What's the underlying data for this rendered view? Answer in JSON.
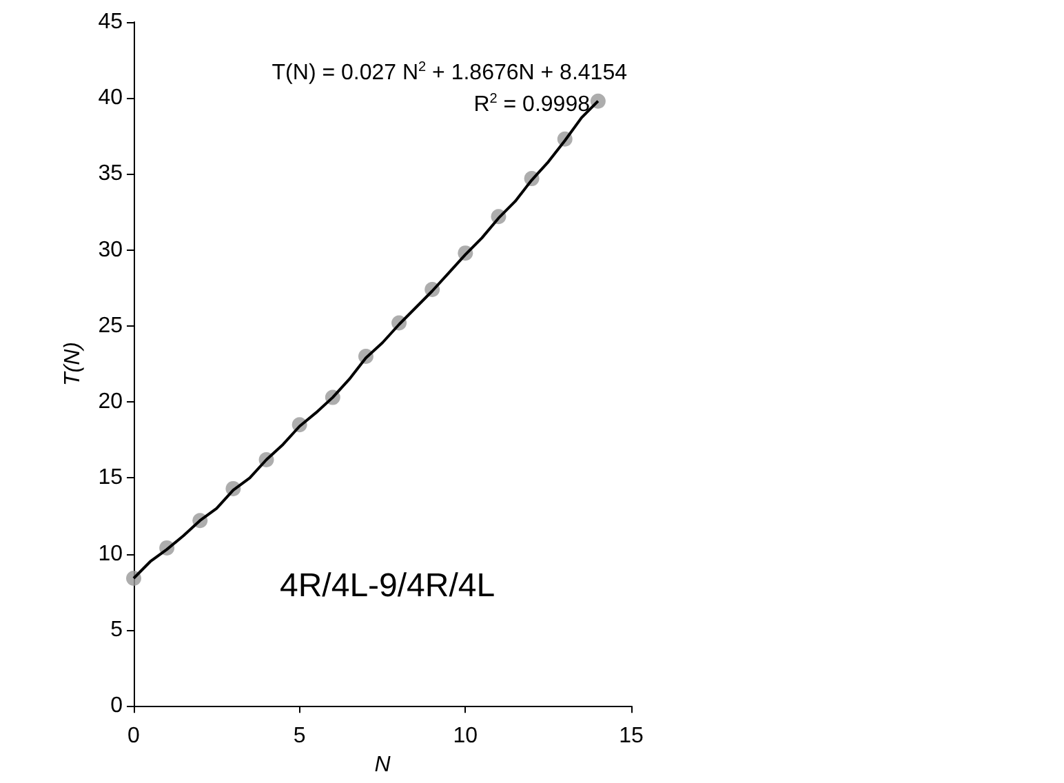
{
  "chart_data": {
    "type": "scatter",
    "xlabel": "N",
    "ylabel": "T(N)",
    "x": [
      0,
      1,
      2,
      3,
      4,
      5,
      6,
      7,
      8,
      9,
      10,
      11,
      12,
      13,
      14
    ],
    "series": [
      {
        "color": "#999999",
        "marker": "circle",
        "values": [
          8.4,
          10.4,
          12.2,
          14.3,
          16.2,
          18.5,
          20.3,
          23.0,
          25.2,
          27.4,
          29.8,
          32.2,
          34.7,
          37.3,
          39.8
        ]
      },
      {
        "type": "line",
        "color": "#000000",
        "marker": "none",
        "line_style": "solid",
        "x": [
          0,
          0.5,
          1,
          1.5,
          2,
          2.5,
          3,
          3.5,
          4,
          4.5,
          5,
          5.5,
          6,
          6.5,
          7,
          7.5,
          8,
          8.5,
          9,
          9.5,
          10,
          10.5,
          11,
          11.5,
          12,
          12.5,
          13,
          13.5,
          14
        ],
        "values": [
          8.4,
          9.5,
          10.3,
          11.2,
          12.2,
          13.0,
          14.2,
          15.0,
          16.2,
          17.2,
          18.4,
          19.3,
          20.3,
          21.5,
          22.9,
          23.9,
          25.1,
          26.2,
          27.3,
          28.5,
          29.7,
          30.8,
          32.1,
          33.2,
          34.6,
          35.8,
          37.2,
          38.7,
          39.8
        ]
      }
    ],
    "xlim": [
      0,
      15
    ],
    "xticks": [
      0,
      5,
      10,
      15
    ],
    "ylim": [
      0,
      45
    ],
    "yticks": [
      0,
      5,
      10,
      15,
      20,
      25,
      30,
      35,
      40,
      45
    ],
    "grid": false,
    "annotations": [
      "T(N) = 0.027 N$^{2}$ + 1.8676N + 8.4154",
      "R$^{2}$ = 0.9998",
      "4R/4L-9/4R/4L"
    ]
  }
}
